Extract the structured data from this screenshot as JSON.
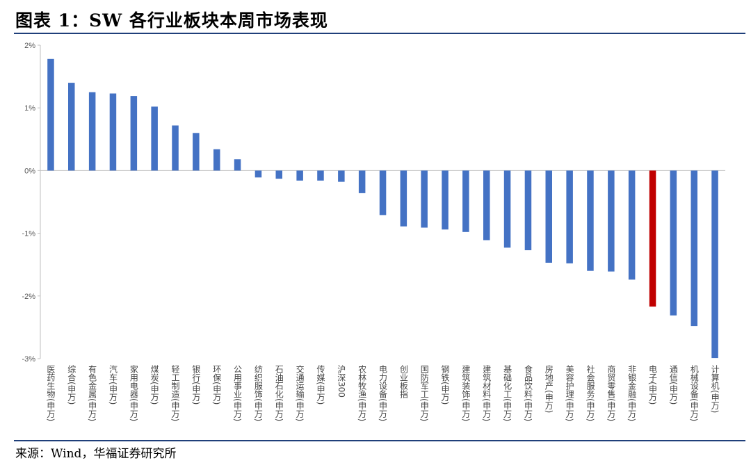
{
  "title": "图表 1：SW 各行业板块本周市场表现",
  "source": "来源：Wind，华福证券研究所",
  "colors": {
    "bar": "#4472C4",
    "highlight": "#C00000",
    "rule": "#1f3f7a"
  },
  "chart_data": {
    "type": "bar",
    "title": "",
    "xlabel": "",
    "ylabel": "",
    "ylim": [
      -3,
      2
    ],
    "yticks": [
      2,
      1,
      0,
      -1,
      -2,
      -3
    ],
    "ytick_labels": [
      "2%",
      "1%",
      "0%",
      "-1%",
      "-2%",
      "-3%"
    ],
    "unit": "%",
    "highlight": [
      "电子(申万)"
    ],
    "grid": false,
    "categories": [
      "医药生物(申万)",
      "综合(申万)",
      "有色金属(申万)",
      "汽车(申万)",
      "家用电器(申万)",
      "煤炭(申万)",
      "轻工制造(申万)",
      "银行(申万)",
      "环保(申万)",
      "公用事业(申万)",
      "纺织服饰(申万)",
      "石油石化(申万)",
      "交通运输(申万)",
      "传媒(申万)",
      "沪深300",
      "农林牧渔(申万)",
      "电力设备(申万)",
      "创业板指",
      "国防军工(申万)",
      "钢铁(申万)",
      "建筑装饰(申万)",
      "建筑材料(申万)",
      "基础化工(申万)",
      "食品饮料(申万)",
      "房地产(申万)",
      "美容护理(申万)",
      "社会服务(申万)",
      "商贸零售(申万)",
      "非银金融(申万)",
      "电子(申万)",
      "通信(申万)",
      "机械设备(申万)",
      "计算机(申万)"
    ],
    "values": [
      1.78,
      1.4,
      1.25,
      1.23,
      1.19,
      1.02,
      0.72,
      0.6,
      0.34,
      0.18,
      -0.11,
      -0.13,
      -0.16,
      -0.16,
      -0.18,
      -0.36,
      -0.71,
      -0.89,
      -0.91,
      -0.94,
      -0.98,
      -1.11,
      -1.23,
      -1.27,
      -1.47,
      -1.48,
      -1.6,
      -1.61,
      -1.74,
      -2.17,
      -2.31,
      -2.48,
      -2.99
    ]
  }
}
